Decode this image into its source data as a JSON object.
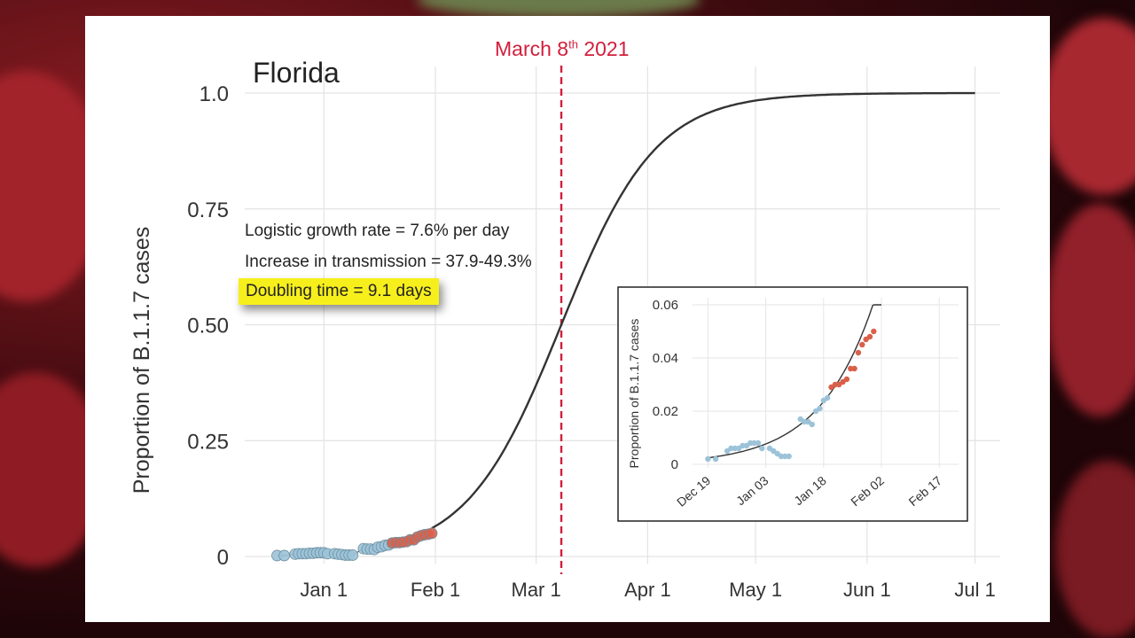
{
  "chart_data": [
    {
      "type": "line",
      "title": "Florida",
      "ylabel": "Proportion of B.1.1.7 cases",
      "xlabel": "",
      "ylim": [
        0,
        1.0
      ],
      "yticks": [
        {
          "value": 0,
          "label": "0"
        },
        {
          "value": 0.25,
          "label": "0.25"
        },
        {
          "value": 0.5,
          "label": "0.50"
        },
        {
          "value": 0.75,
          "label": "0.75"
        },
        {
          "value": 1.0,
          "label": "1.0"
        }
      ],
      "xticks": [
        {
          "value": "2021-01-01",
          "label": "Jan 1"
        },
        {
          "value": "2021-02-01",
          "label": "Feb 1"
        },
        {
          "value": "2021-03-01",
          "label": "Mar 1"
        },
        {
          "value": "2021-04-01",
          "label": "Apr 1"
        },
        {
          "value": "2021-05-01",
          "label": "May 1"
        },
        {
          "value": "2021-06-01",
          "label": "Jun 1"
        },
        {
          "value": "2021-07-01",
          "label": "Jul 1"
        }
      ],
      "xlim": [
        "2020-12-10",
        "2021-07-08"
      ],
      "grid": true,
      "curve": {
        "midpoint": "2021-03-08",
        "rate_per_day": 0.076,
        "start": "2021-01-31",
        "end": "2021-07-01"
      },
      "vline": {
        "x": "2021-03-08",
        "label": "March 8",
        "label_sup": "th",
        "label_year": " 2021",
        "color": "#d21e3c"
      },
      "annotations": [
        "Logistic growth rate = 7.6% per day",
        "Increase in transmission = 37.9-49.3%",
        "Doubling time = 9.1 days"
      ],
      "points": [
        {
          "x": "2020-12-19",
          "y": 0.002,
          "group": "blue"
        },
        {
          "x": "2020-12-21",
          "y": 0.002,
          "group": "blue"
        },
        {
          "x": "2020-12-24",
          "y": 0.005,
          "group": "blue"
        },
        {
          "x": "2020-12-25",
          "y": 0.006,
          "group": "blue"
        },
        {
          "x": "2020-12-26",
          "y": 0.006,
          "group": "blue"
        },
        {
          "x": "2020-12-27",
          "y": 0.006,
          "group": "blue"
        },
        {
          "x": "2020-12-28",
          "y": 0.007,
          "group": "blue"
        },
        {
          "x": "2020-12-29",
          "y": 0.007,
          "group": "blue"
        },
        {
          "x": "2020-12-30",
          "y": 0.008,
          "group": "blue"
        },
        {
          "x": "2020-12-31",
          "y": 0.008,
          "group": "blue"
        },
        {
          "x": "2021-01-01",
          "y": 0.008,
          "group": "blue"
        },
        {
          "x": "2021-01-02",
          "y": 0.006,
          "group": "blue"
        },
        {
          "x": "2021-01-04",
          "y": 0.006,
          "group": "blue"
        },
        {
          "x": "2021-01-05",
          "y": 0.005,
          "group": "blue"
        },
        {
          "x": "2021-01-06",
          "y": 0.004,
          "group": "blue"
        },
        {
          "x": "2021-01-07",
          "y": 0.003,
          "group": "blue"
        },
        {
          "x": "2021-01-08",
          "y": 0.003,
          "group": "blue"
        },
        {
          "x": "2021-01-09",
          "y": 0.003,
          "group": "blue"
        },
        {
          "x": "2021-01-12",
          "y": 0.017,
          "group": "blue"
        },
        {
          "x": "2021-01-13",
          "y": 0.016,
          "group": "blue"
        },
        {
          "x": "2021-01-14",
          "y": 0.016,
          "group": "blue"
        },
        {
          "x": "2021-01-15",
          "y": 0.015,
          "group": "blue"
        },
        {
          "x": "2021-01-16",
          "y": 0.02,
          "group": "blue"
        },
        {
          "x": "2021-01-17",
          "y": 0.021,
          "group": "blue"
        },
        {
          "x": "2021-01-18",
          "y": 0.024,
          "group": "blue"
        },
        {
          "x": "2021-01-19",
          "y": 0.025,
          "group": "blue"
        },
        {
          "x": "2021-01-20",
          "y": 0.029,
          "group": "red"
        },
        {
          "x": "2021-01-21",
          "y": 0.03,
          "group": "red"
        },
        {
          "x": "2021-01-22",
          "y": 0.03,
          "group": "red"
        },
        {
          "x": "2021-01-23",
          "y": 0.031,
          "group": "red"
        },
        {
          "x": "2021-01-24",
          "y": 0.032,
          "group": "red"
        },
        {
          "x": "2021-01-25",
          "y": 0.036,
          "group": "red"
        },
        {
          "x": "2021-01-26",
          "y": 0.036,
          "group": "red"
        },
        {
          "x": "2021-01-27",
          "y": 0.042,
          "group": "red"
        },
        {
          "x": "2021-01-28",
          "y": 0.045,
          "group": "red"
        },
        {
          "x": "2021-01-29",
          "y": 0.047,
          "group": "red"
        },
        {
          "x": "2021-01-30",
          "y": 0.048,
          "group": "red"
        },
        {
          "x": "2021-01-31",
          "y": 0.05,
          "group": "red"
        }
      ],
      "colors": {
        "blue": "#9cc3d8",
        "red": "#d9604a",
        "line": "#333333"
      }
    },
    {
      "type": "line",
      "title": "",
      "ylabel": "Proportion of B.1.1.7 cases",
      "xlabel": "",
      "ylim": [
        0,
        0.06
      ],
      "yticks": [
        {
          "value": 0,
          "label": "0"
        },
        {
          "value": 0.02,
          "label": "0.02"
        },
        {
          "value": 0.04,
          "label": "0.04"
        },
        {
          "value": 0.06,
          "label": "0.06"
        }
      ],
      "xticks": [
        {
          "value": "2020-12-19",
          "label": "Dec 19"
        },
        {
          "value": "2021-01-03",
          "label": "Jan 03"
        },
        {
          "value": "2021-01-18",
          "label": "Jan 18"
        },
        {
          "value": "2021-02-02",
          "label": "Feb 02"
        },
        {
          "value": "2021-02-17",
          "label": "Feb 17"
        }
      ],
      "xlim": [
        "2020-12-15",
        "2021-02-22"
      ],
      "grid": true,
      "curve": {
        "midpoint": "2021-03-08",
        "rate_per_day": 0.076,
        "start": "2020-12-19",
        "end": "2021-02-02"
      }
    }
  ]
}
